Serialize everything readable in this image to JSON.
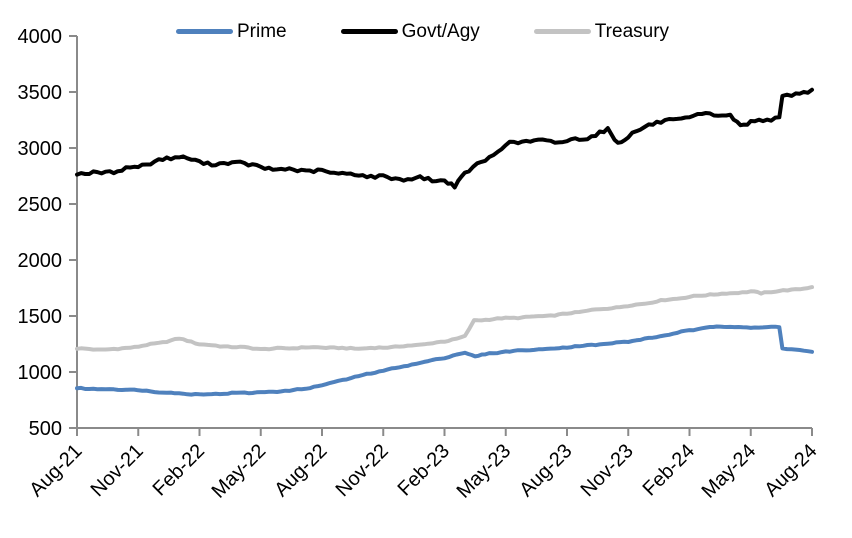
{
  "chart_data": {
    "type": "line",
    "title": "",
    "legend": {
      "position": "top",
      "items": [
        "Prime",
        "Govt/Agy",
        "Treasury"
      ]
    },
    "x_tick_labels": [
      "Aug-21",
      "Nov-21",
      "Feb-22",
      "May-22",
      "Aug-22",
      "Nov-22",
      "Feb-23",
      "May-23",
      "Aug-23",
      "Nov-23",
      "Feb-24",
      "May-24",
      "Aug-24"
    ],
    "y_ticks": [
      500,
      1000,
      1500,
      2000,
      2500,
      3000,
      3500,
      4000
    ],
    "ylim": [
      500,
      4000
    ],
    "x_range_months": [
      0,
      36
    ],
    "grid": false,
    "axis_color": "#8a8a8a",
    "text_color": "#000000",
    "series": [
      {
        "name": "Treasury",
        "color": "#c3c3c3",
        "stroke_width": 4,
        "noise": 7,
        "points": [
          [
            0,
            1210
          ],
          [
            1,
            1200
          ],
          [
            2,
            1205
          ],
          [
            3,
            1228
          ],
          [
            4,
            1258
          ],
          [
            5,
            1298
          ],
          [
            6,
            1250
          ],
          [
            7,
            1230
          ],
          [
            8,
            1222
          ],
          [
            9,
            1205
          ],
          [
            10,
            1210
          ],
          [
            11,
            1218
          ],
          [
            12,
            1220
          ],
          [
            13,
            1212
          ],
          [
            14,
            1210
          ],
          [
            15,
            1218
          ],
          [
            16,
            1230
          ],
          [
            17,
            1248
          ],
          [
            18,
            1272
          ],
          [
            19,
            1318
          ],
          [
            19.45,
            1458
          ],
          [
            20,
            1468
          ],
          [
            21,
            1480
          ],
          [
            22,
            1490
          ],
          [
            23,
            1500
          ],
          [
            24,
            1520
          ],
          [
            25,
            1548
          ],
          [
            26,
            1568
          ],
          [
            27,
            1590
          ],
          [
            28,
            1618
          ],
          [
            29,
            1648
          ],
          [
            30,
            1670
          ],
          [
            31,
            1692
          ],
          [
            32,
            1702
          ],
          [
            33,
            1720
          ],
          [
            33.5,
            1702
          ],
          [
            34,
            1718
          ],
          [
            35,
            1732
          ],
          [
            36,
            1758
          ]
        ]
      },
      {
        "name": "Prime",
        "color": "#4f81bd",
        "stroke_width": 4,
        "noise": 6,
        "points": [
          [
            0,
            855
          ],
          [
            1,
            848
          ],
          [
            2,
            845
          ],
          [
            3,
            838
          ],
          [
            4,
            822
          ],
          [
            5,
            808
          ],
          [
            6,
            800
          ],
          [
            7,
            806
          ],
          [
            8,
            814
          ],
          [
            9,
            818
          ],
          [
            10,
            828
          ],
          [
            11,
            845
          ],
          [
            12,
            882
          ],
          [
            13,
            928
          ],
          [
            14,
            972
          ],
          [
            15,
            1012
          ],
          [
            16,
            1052
          ],
          [
            17,
            1088
          ],
          [
            18,
            1128
          ],
          [
            19,
            1172
          ],
          [
            19.5,
            1140
          ],
          [
            20,
            1158
          ],
          [
            21,
            1183
          ],
          [
            22,
            1195
          ],
          [
            23,
            1205
          ],
          [
            24,
            1222
          ],
          [
            25,
            1238
          ],
          [
            26,
            1252
          ],
          [
            27,
            1272
          ],
          [
            28,
            1300
          ],
          [
            29,
            1335
          ],
          [
            30,
            1372
          ],
          [
            31,
            1398
          ],
          [
            31.5,
            1410
          ],
          [
            32,
            1405
          ],
          [
            33,
            1395
          ],
          [
            34,
            1400
          ],
          [
            34.4,
            1403
          ],
          [
            34.55,
            1215
          ],
          [
            35,
            1203
          ],
          [
            36,
            1180
          ]
        ]
      },
      {
        "name": "Govt/Agy",
        "color": "#000000",
        "stroke_width": 4,
        "noise": 20,
        "points": [
          [
            0,
            2780
          ],
          [
            1,
            2772
          ],
          [
            2,
            2798
          ],
          [
            3,
            2838
          ],
          [
            4,
            2888
          ],
          [
            5,
            2928
          ],
          [
            6,
            2872
          ],
          [
            7,
            2855
          ],
          [
            8,
            2875
          ],
          [
            9,
            2822
          ],
          [
            10,
            2810
          ],
          [
            11,
            2800
          ],
          [
            12,
            2790
          ],
          [
            13,
            2772
          ],
          [
            14,
            2756
          ],
          [
            15,
            2740
          ],
          [
            16,
            2722
          ],
          [
            17,
            2732
          ],
          [
            18,
            2700
          ],
          [
            18.5,
            2660
          ],
          [
            19,
            2780
          ],
          [
            20,
            2890
          ],
          [
            21,
            3030
          ],
          [
            22,
            3065
          ],
          [
            23,
            3058
          ],
          [
            24,
            3060
          ],
          [
            25,
            3095
          ],
          [
            26,
            3160
          ],
          [
            26.5,
            3048
          ],
          [
            27,
            3100
          ],
          [
            28,
            3212
          ],
          [
            29,
            3242
          ],
          [
            30,
            3270
          ],
          [
            31,
            3310
          ],
          [
            32,
            3280
          ],
          [
            32.5,
            3205
          ],
          [
            33,
            3230
          ],
          [
            34,
            3262
          ],
          [
            34.4,
            3268
          ],
          [
            34.55,
            3455
          ],
          [
            35,
            3470
          ],
          [
            36,
            3520
          ]
        ]
      }
    ]
  }
}
